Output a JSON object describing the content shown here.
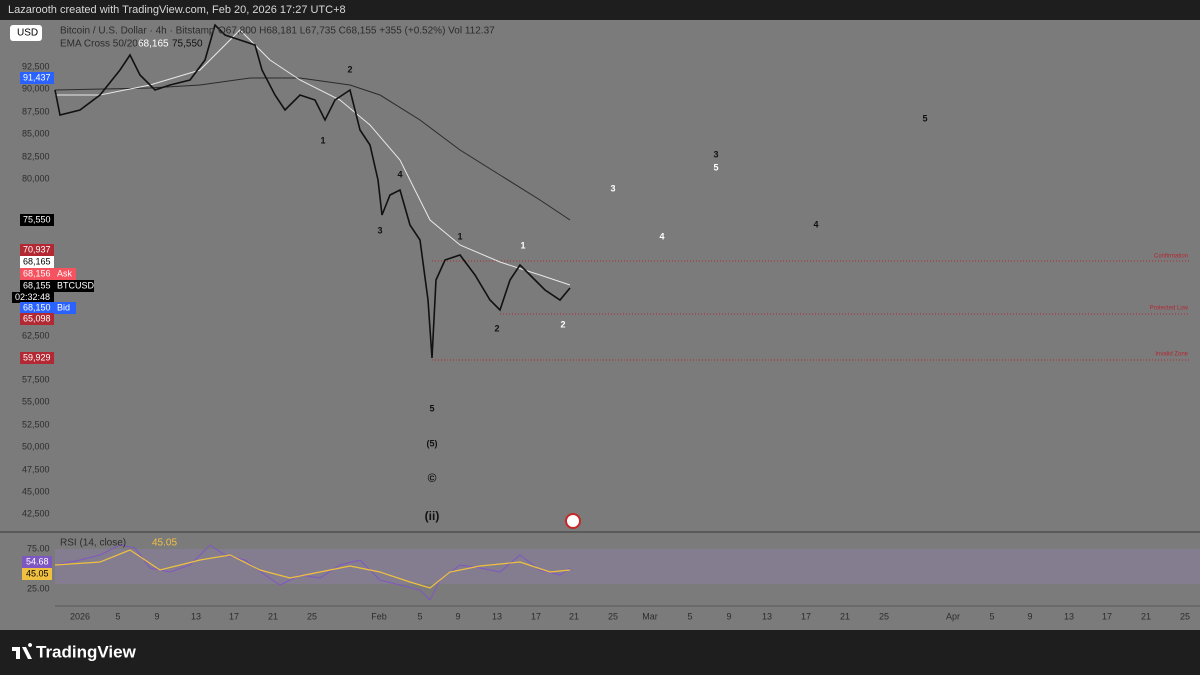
{
  "header": {
    "caption": "Lazarooth created with TradingView.com, Feb 20, 2026 17:27 UTC+8"
  },
  "currency": "USD",
  "legend": {
    "symbol": "Bitcoin / U.S. Dollar · 4h · Bitstamp",
    "ohlc": "O67,800 H68,181 L67,735 C68,155 +355 (+0.52%) Vol 112.37",
    "indicator": "EMA Cross 50/200",
    "indicator_values": [
      "68,165",
      "75,550"
    ]
  },
  "price_axis": [
    "92,500",
    "90,000",
    "87,500",
    "85,000",
    "82,500",
    "80,000",
    "62,500",
    "57,500",
    "55,000",
    "52,500",
    "50,000",
    "47,500",
    "45,000",
    "42,500"
  ],
  "price_badges": [
    {
      "text": "91,437",
      "color": "#2962ff"
    },
    {
      "text": "75,550",
      "color": "#000000"
    },
    {
      "text": "70,937",
      "color": "#b22833"
    },
    {
      "text": "68,165",
      "color": "#ffffff"
    },
    {
      "text": "68,156",
      "color": "#f7525f",
      "tag": "Ask"
    },
    {
      "text": "68,155",
      "color": "#000000",
      "tag": "BTCUSD",
      "timer": "02:32:48"
    },
    {
      "text": "68,150",
      "color": "#2962ff",
      "tag": "Bid"
    },
    {
      "text": "65,098",
      "color": "#b22833"
    },
    {
      "text": "59,929",
      "color": "#b22833"
    }
  ],
  "wave_labels": [
    "2",
    "1",
    "4",
    "3",
    "1",
    "2",
    "1",
    "2",
    "5",
    "(5)",
    "©",
    "(ii)",
    "3",
    "4",
    "3",
    "5",
    "4",
    "5"
  ],
  "zones": [
    "Confirmation",
    "Protected Low",
    "Invalid Zone"
  ],
  "rsi": {
    "title": "RSI (14, close)",
    "value": "45.05",
    "axis": [
      "75.00",
      "25.00"
    ],
    "badges": [
      "54.68",
      "45.05"
    ]
  },
  "time_axis": [
    "2026",
    "5",
    "9",
    "13",
    "17",
    "21",
    "25",
    "Feb",
    "5",
    "9",
    "13",
    "17",
    "21",
    "25",
    "Mar",
    "5",
    "9",
    "13",
    "17",
    "21",
    "25",
    "Apr",
    "5",
    "9",
    "13",
    "17",
    "21",
    "25"
  ],
  "footer": {
    "brand": "TradingView"
  }
}
